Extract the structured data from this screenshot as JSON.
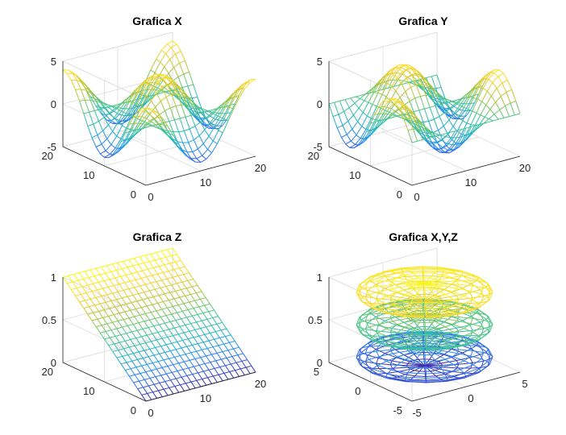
{
  "figure": {
    "background": "#ffffff",
    "colormap": [
      "#3e26a8",
      "#2f7ef8",
      "#1fb3c9",
      "#49c68a",
      "#b8c43a",
      "#f9d630",
      "#f9fb14"
    ]
  },
  "chart_data": [
    {
      "type": "mesh",
      "title": "Grafica X",
      "x": {
        "range": [
          0,
          20
        ],
        "ticks": [
          "0",
          "10",
          "20"
        ],
        "tick_values": [
          0,
          10,
          20
        ]
      },
      "y": {
        "range": [
          0,
          20
        ],
        "ticks": [
          "0",
          "10",
          "20"
        ],
        "tick_values": [
          0,
          10,
          20
        ]
      },
      "z": {
        "range": [
          -5,
          5
        ],
        "ticks": [
          "-5",
          "0",
          "5"
        ],
        "tick_values": [
          -5,
          0,
          5
        ]
      },
      "grid": true,
      "function": "z = 4*cos(pi*x/10)*cos(pi*y/10)",
      "grid_points": 21
    },
    {
      "type": "mesh",
      "title": "Grafica Y",
      "x": {
        "range": [
          0,
          20
        ],
        "ticks": [
          "0",
          "10",
          "20"
        ],
        "tick_values": [
          0,
          10,
          20
        ]
      },
      "y": {
        "range": [
          0,
          20
        ],
        "ticks": [
          "0",
          "10",
          "20"
        ],
        "tick_values": [
          0,
          10,
          20
        ]
      },
      "z": {
        "range": [
          -5,
          5
        ],
        "ticks": [
          "-5",
          "0",
          "5"
        ],
        "tick_values": [
          -5,
          0,
          5
        ]
      },
      "grid": true,
      "function": "z = 4*cos(pi*x/10)*sin(pi*y/10)",
      "grid_points": 21
    },
    {
      "type": "mesh",
      "title": "Grafica Z",
      "x": {
        "range": [
          0,
          20
        ],
        "ticks": [
          "0",
          "10",
          "20"
        ],
        "tick_values": [
          0,
          10,
          20
        ]
      },
      "y": {
        "range": [
          0,
          20
        ],
        "ticks": [
          "0",
          "10",
          "20"
        ],
        "tick_values": [
          0,
          10,
          20
        ]
      },
      "z": {
        "range": [
          0,
          1
        ],
        "ticks": [
          "0",
          "0.5",
          "1"
        ],
        "tick_values": [
          0,
          0.5,
          1
        ]
      },
      "grid": true,
      "function": "z = y/20",
      "grid_points": 21
    },
    {
      "type": "mesh",
      "title": "Grafica X,Y,Z",
      "x": {
        "range": [
          -5,
          5
        ],
        "ticks": [
          "-5",
          "0",
          "5"
        ],
        "tick_values": [
          -5,
          0,
          5
        ]
      },
      "y": {
        "range": [
          -5,
          5
        ],
        "ticks": [
          "-5",
          "0",
          "5"
        ],
        "tick_values": [
          -5,
          0,
          5
        ]
      },
      "z": {
        "range": [
          0,
          1
        ],
        "ticks": [
          "0",
          "0.5",
          "1"
        ],
        "tick_values": [
          0,
          0.5,
          1
        ]
      },
      "grid": true,
      "function": "three flattened ellipsoids centered at z = 0.12, 0.5, 0.88",
      "ellipsoids": [
        {
          "center_z": 0.12,
          "radius_xy": 5,
          "half_height": 0.1
        },
        {
          "center_z": 0.5,
          "radius_xy": 5,
          "half_height": 0.1
        },
        {
          "center_z": 0.88,
          "radius_xy": 5,
          "half_height": 0.1
        }
      ]
    }
  ]
}
